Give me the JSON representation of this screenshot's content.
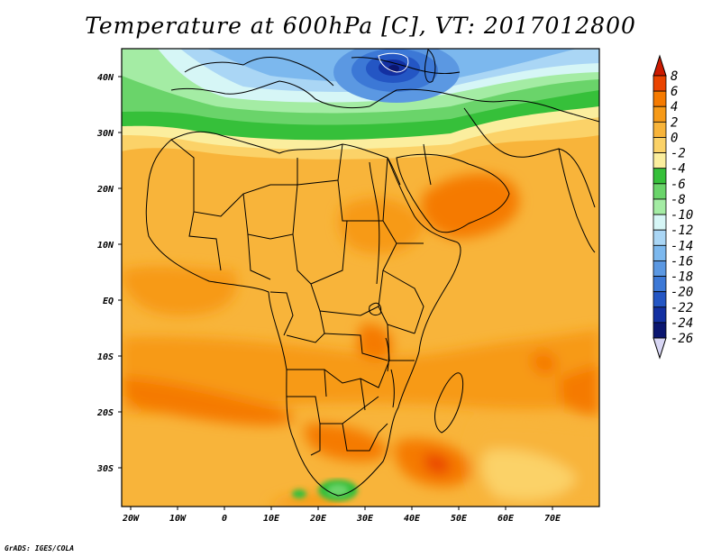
{
  "title": "Temperature at 600hPa [C], VT: 2017012800",
  "credit": "GrADS: IGES/COLA",
  "lat_ticks": [
    "40N",
    "30N",
    "20N",
    "10N",
    "EQ",
    "10S",
    "20S",
    "30S"
  ],
  "lon_ticks": [
    "20W",
    "10W",
    "0",
    "10E",
    "20E",
    "30E",
    "40E",
    "50E",
    "60E",
    "70E"
  ],
  "colorbar": {
    "labels": [
      "8",
      "6",
      "4",
      "2",
      "0",
      "-2",
      "-4",
      "-6",
      "-8",
      "-10",
      "-12",
      "-14",
      "-16",
      "-18",
      "-20",
      "-22",
      "-24",
      "-26"
    ],
    "colors": [
      "#cc1a00",
      "#ea4400",
      "#f57a00",
      "#f79a18",
      "#f8b43a",
      "#fbd268",
      "#fbee9e",
      "#36c03a",
      "#6ad46a",
      "#a4eca4",
      "#d6f6f6",
      "#aad6f5",
      "#7cb8ee",
      "#5b98e2",
      "#3c78d6",
      "#2456c4",
      "#1330a2",
      "#0b1670",
      "#d8d6f4"
    ]
  },
  "field": {
    "variable": "temperature",
    "level": "600hPa",
    "units": "C",
    "valid_time": "2017012800",
    "domain": {
      "lon_range": [
        -22,
        80
      ],
      "lat_range": [
        -37,
        45
      ]
    }
  }
}
